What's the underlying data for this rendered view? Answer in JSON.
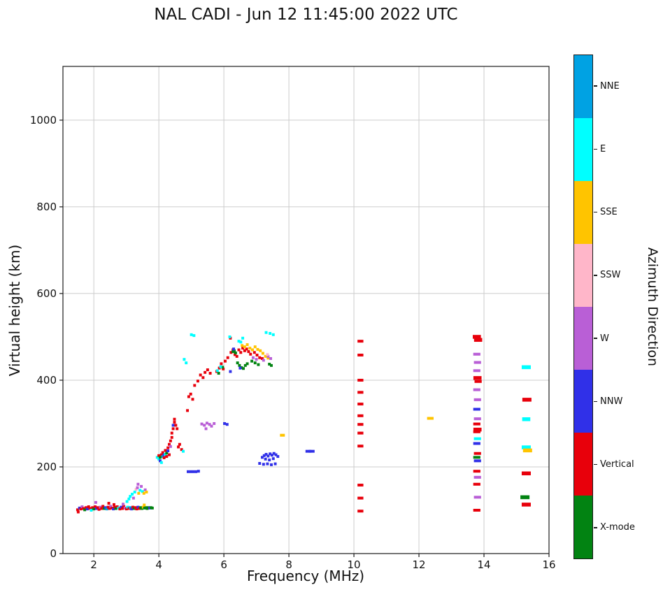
{
  "chart_data": {
    "type": "scatter",
    "title": "NAL CADI - Jun 12 11:45:00 2022 UTC",
    "xlabel": "Frequency (MHz)",
    "ylabel": "Virtual height (km)",
    "legend_title": "Azimuth Direction",
    "x_range": [
      1.05,
      16.0
    ],
    "y_range": [
      0,
      1124
    ],
    "x_ticks": [
      2,
      4,
      6,
      8,
      10,
      12,
      14,
      16
    ],
    "y_ticks": [
      0,
      200,
      400,
      600,
      800,
      1000
    ],
    "grid": true,
    "legend_position": "right-colorbar",
    "categories": [
      {
        "key": "N",
        "label": "NNE",
        "color": "#00a2e3"
      },
      {
        "key": "E",
        "label": "E",
        "color": "#00ffff"
      },
      {
        "key": "S",
        "label": "SSE",
        "color": "#ffc400"
      },
      {
        "key": "P",
        "label": "SSW",
        "color": "#ffb6c9"
      },
      {
        "key": "W",
        "label": "W",
        "color": "#b95fd6"
      },
      {
        "key": "B",
        "label": "NNW",
        "color": "#3030e8"
      },
      {
        "key": "V",
        "label": "Vertical",
        "color": "#e8000b"
      },
      {
        "key": "X",
        "label": "X-mode",
        "color": "#028312"
      }
    ],
    "point_format": [
      "frequency_mhz",
      "virtual_height_km",
      "category_key",
      "optional_dash_width_mhz"
    ],
    "points": [
      [
        1.5,
        101,
        "V"
      ],
      [
        1.52,
        96,
        "V"
      ],
      [
        1.56,
        105,
        "B"
      ],
      [
        1.6,
        103,
        "V"
      ],
      [
        1.64,
        108,
        "W"
      ],
      [
        1.68,
        104,
        "V"
      ],
      [
        1.72,
        101,
        "X"
      ],
      [
        1.76,
        106,
        "V"
      ],
      [
        1.8,
        103,
        "B"
      ],
      [
        1.84,
        108,
        "V"
      ],
      [
        1.88,
        104,
        "V"
      ],
      [
        1.92,
        100,
        "E"
      ],
      [
        1.96,
        106,
        "V"
      ],
      [
        2.0,
        103,
        "X"
      ],
      [
        2.04,
        108,
        "V"
      ],
      [
        2.08,
        104,
        "B"
      ],
      [
        2.12,
        106,
        "V"
      ],
      [
        2.16,
        102,
        "V"
      ],
      [
        2.2,
        107,
        "W"
      ],
      [
        2.24,
        104,
        "V"
      ],
      [
        2.28,
        109,
        "V"
      ],
      [
        2.32,
        104,
        "X"
      ],
      [
        2.36,
        106,
        "B"
      ],
      [
        2.4,
        103,
        "N"
      ],
      [
        2.44,
        107,
        "V"
      ],
      [
        2.48,
        104,
        "V"
      ],
      [
        2.52,
        109,
        "W"
      ],
      [
        2.56,
        105,
        "V"
      ],
      [
        2.6,
        103,
        "B"
      ],
      [
        2.64,
        107,
        "V"
      ],
      [
        2.68,
        104,
        "X"
      ],
      [
        2.72,
        108,
        "V"
      ],
      [
        2.76,
        105,
        "E"
      ],
      [
        2.8,
        103,
        "V"
      ],
      [
        2.84,
        107,
        "B"
      ],
      [
        2.88,
        104,
        "V"
      ],
      [
        2.92,
        109,
        "V"
      ],
      [
        2.96,
        105,
        "W"
      ],
      [
        3.0,
        103,
        "V"
      ],
      [
        3.04,
        107,
        "E"
      ],
      [
        3.08,
        104,
        "V"
      ],
      [
        3.12,
        106,
        "N"
      ],
      [
        3.16,
        103,
        "B"
      ],
      [
        3.2,
        107,
        "V"
      ],
      [
        3.24,
        104,
        "X"
      ],
      [
        3.28,
        106,
        "V"
      ],
      [
        3.32,
        103,
        "V"
      ],
      [
        3.36,
        107,
        "B"
      ],
      [
        3.4,
        104,
        "V"
      ],
      [
        3.44,
        106,
        "X"
      ],
      [
        3.48,
        104,
        "X"
      ],
      [
        3.52,
        107,
        "S"
      ],
      [
        3.56,
        105,
        "X"
      ],
      [
        3.6,
        106,
        "X"
      ],
      [
        3.64,
        104,
        "X"
      ],
      [
        3.68,
        106,
        "X"
      ],
      [
        3.72,
        105,
        "B"
      ],
      [
        3.76,
        106,
        "X"
      ],
      [
        3.8,
        105,
        "X"
      ],
      [
        2.06,
        118,
        "W"
      ],
      [
        2.46,
        116,
        "V"
      ],
      [
        2.62,
        113,
        "V"
      ],
      [
        2.9,
        114,
        "W"
      ],
      [
        3.02,
        120,
        "E"
      ],
      [
        3.08,
        126,
        "E"
      ],
      [
        3.12,
        132,
        "E"
      ],
      [
        3.18,
        137,
        "E"
      ],
      [
        3.22,
        128,
        "W"
      ],
      [
        3.26,
        142,
        "E"
      ],
      [
        3.3,
        148,
        "P"
      ],
      [
        3.34,
        152,
        "W"
      ],
      [
        3.38,
        139,
        "S"
      ],
      [
        3.42,
        146,
        "E"
      ],
      [
        3.46,
        155,
        "W"
      ],
      [
        3.5,
        143,
        "E"
      ],
      [
        3.54,
        139,
        "S"
      ],
      [
        3.58,
        147,
        "W"
      ],
      [
        3.36,
        160,
        "W"
      ],
      [
        3.62,
        142,
        "S"
      ],
      [
        3.55,
        112,
        "S"
      ],
      [
        3.95,
        222,
        "E"
      ],
      [
        4.0,
        218,
        "E"
      ],
      [
        4.0,
        226,
        "V"
      ],
      [
        4.04,
        222,
        "X"
      ],
      [
        4.04,
        214,
        "B"
      ],
      [
        4.08,
        228,
        "V"
      ],
      [
        4.08,
        210,
        "E"
      ],
      [
        4.12,
        224,
        "N"
      ],
      [
        4.12,
        233,
        "V"
      ],
      [
        4.16,
        221,
        "V"
      ],
      [
        4.16,
        228,
        "B"
      ],
      [
        4.2,
        238,
        "V"
      ],
      [
        4.2,
        229,
        "E"
      ],
      [
        4.24,
        224,
        "V"
      ],
      [
        4.24,
        232,
        "X"
      ],
      [
        4.28,
        244,
        "V"
      ],
      [
        4.28,
        237,
        "B"
      ],
      [
        4.32,
        252,
        "V"
      ],
      [
        4.32,
        228,
        "V"
      ],
      [
        4.36,
        260,
        "V"
      ],
      [
        4.36,
        247,
        "W"
      ],
      [
        4.4,
        268,
        "V"
      ],
      [
        4.4,
        278,
        "V"
      ],
      [
        4.44,
        288,
        "V"
      ],
      [
        4.44,
        296,
        "B"
      ],
      [
        4.48,
        303,
        "V"
      ],
      [
        4.48,
        310,
        "V"
      ],
      [
        4.52,
        296,
        "V"
      ],
      [
        4.56,
        288,
        "V"
      ],
      [
        4.6,
        246,
        "V"
      ],
      [
        4.64,
        252,
        "V"
      ],
      [
        4.7,
        240,
        "V"
      ],
      [
        4.75,
        236,
        "E"
      ],
      [
        4.78,
        448,
        "E"
      ],
      [
        4.84,
        440,
        "E"
      ],
      [
        4.88,
        330,
        "V"
      ],
      [
        4.92,
        362,
        "V"
      ],
      [
        4.98,
        368,
        "V"
      ],
      [
        5.04,
        356,
        "V"
      ],
      [
        5.1,
        388,
        "V"
      ],
      [
        5.2,
        398,
        "V"
      ],
      [
        5.28,
        412,
        "V"
      ],
      [
        5.36,
        406,
        "V"
      ],
      [
        5.42,
        418,
        "V"
      ],
      [
        5.5,
        424,
        "V"
      ],
      [
        5.58,
        416,
        "V"
      ],
      [
        4.9,
        189,
        "B"
      ],
      [
        4.98,
        189,
        "B"
      ],
      [
        5.06,
        189,
        "B"
      ],
      [
        5.14,
        189,
        "B"
      ],
      [
        5.22,
        190,
        "B"
      ],
      [
        5.32,
        299,
        "W"
      ],
      [
        5.4,
        296,
        "W"
      ],
      [
        5.48,
        301,
        "W"
      ],
      [
        5.56,
        298,
        "W"
      ],
      [
        5.62,
        294,
        "W"
      ],
      [
        5.7,
        300,
        "W"
      ],
      [
        5.45,
        288,
        "W"
      ],
      [
        6.02,
        300,
        "B"
      ],
      [
        6.1,
        298,
        "B"
      ],
      [
        5.78,
        420,
        "V"
      ],
      [
        5.86,
        428,
        "V"
      ],
      [
        5.92,
        438,
        "V"
      ],
      [
        5.98,
        426,
        "V"
      ],
      [
        6.04,
        444,
        "V"
      ],
      [
        6.12,
        452,
        "V"
      ],
      [
        6.2,
        497,
        "V"
      ],
      [
        6.22,
        464,
        "V"
      ],
      [
        6.28,
        470,
        "V"
      ],
      [
        6.34,
        459,
        "V"
      ],
      [
        6.4,
        455,
        "V"
      ],
      [
        6.46,
        470,
        "V"
      ],
      [
        6.52,
        464,
        "V"
      ],
      [
        6.58,
        474,
        "V"
      ],
      [
        6.64,
        468,
        "V"
      ],
      [
        6.7,
        472,
        "V"
      ],
      [
        6.76,
        466,
        "V"
      ],
      [
        6.82,
        460,
        "V"
      ],
      [
        6.88,
        470,
        "V"
      ],
      [
        6.94,
        464,
        "V"
      ],
      [
        7.02,
        458,
        "V"
      ],
      [
        7.1,
        452,
        "V"
      ],
      [
        7.18,
        450,
        "V"
      ],
      [
        5.84,
        416,
        "X"
      ],
      [
        5.96,
        430,
        "X"
      ],
      [
        6.28,
        466,
        "X"
      ],
      [
        6.32,
        468,
        "X"
      ],
      [
        6.36,
        463,
        "X"
      ],
      [
        6.42,
        440,
        "X"
      ],
      [
        6.48,
        434,
        "X"
      ],
      [
        6.54,
        429,
        "X"
      ],
      [
        6.6,
        427,
        "X"
      ],
      [
        6.66,
        434,
        "X"
      ],
      [
        6.72,
        438,
        "X"
      ],
      [
        6.86,
        444,
        "X"
      ],
      [
        6.96,
        440,
        "X"
      ],
      [
        7.06,
        436,
        "X"
      ],
      [
        7.4,
        437,
        "X"
      ],
      [
        7.46,
        434,
        "X"
      ],
      [
        6.56,
        480,
        "S"
      ],
      [
        6.64,
        477,
        "S"
      ],
      [
        6.72,
        482,
        "S"
      ],
      [
        6.8,
        474,
        "S"
      ],
      [
        6.88,
        470,
        "S"
      ],
      [
        6.96,
        477,
        "S"
      ],
      [
        7.04,
        471,
        "S"
      ],
      [
        7.12,
        468,
        "S"
      ],
      [
        7.2,
        462,
        "S"
      ],
      [
        7.28,
        455,
        "S"
      ],
      [
        7.36,
        451,
        "S"
      ],
      [
        5.8,
        422,
        "E"
      ],
      [
        5.9,
        431,
        "E"
      ],
      [
        6.18,
        500,
        "E"
      ],
      [
        6.46,
        490,
        "E"
      ],
      [
        6.52,
        488,
        "E"
      ],
      [
        6.58,
        497,
        "E"
      ],
      [
        7.3,
        510,
        "E"
      ],
      [
        7.42,
        508,
        "E"
      ],
      [
        7.52,
        505,
        "E"
      ],
      [
        5.0,
        505,
        "E"
      ],
      [
        5.08,
        503,
        "E"
      ],
      [
        6.9,
        452,
        "W"
      ],
      [
        7.0,
        448,
        "W"
      ],
      [
        7.22,
        446,
        "W"
      ],
      [
        7.36,
        455,
        "W"
      ],
      [
        7.44,
        450,
        "W"
      ],
      [
        7.34,
        459,
        "P"
      ],
      [
        6.3,
        472,
        "B"
      ],
      [
        6.5,
        428,
        "B"
      ],
      [
        6.2,
        420,
        "B"
      ],
      [
        7.18,
        222,
        "B"
      ],
      [
        7.24,
        226,
        "B"
      ],
      [
        7.3,
        229,
        "B"
      ],
      [
        7.36,
        225,
        "B"
      ],
      [
        7.42,
        230,
        "B"
      ],
      [
        7.48,
        227,
        "B"
      ],
      [
        7.54,
        231,
        "B"
      ],
      [
        7.6,
        228,
        "B"
      ],
      [
        7.66,
        224,
        "B"
      ],
      [
        7.28,
        218,
        "B"
      ],
      [
        7.4,
        216,
        "B"
      ],
      [
        7.52,
        219,
        "B"
      ],
      [
        7.1,
        208,
        "B"
      ],
      [
        7.22,
        206,
        "B"
      ],
      [
        7.34,
        207,
        "B"
      ],
      [
        7.46,
        205,
        "B"
      ],
      [
        7.58,
        207,
        "B"
      ],
      [
        8.6,
        236,
        "B",
        0.18
      ],
      [
        8.7,
        236,
        "B",
        0.18
      ],
      [
        7.8,
        273,
        "S",
        0.15
      ],
      [
        10.2,
        490,
        "V",
        0.18
      ],
      [
        10.2,
        458,
        "V",
        0.18
      ],
      [
        10.2,
        400,
        "V",
        0.18
      ],
      [
        10.2,
        372,
        "V",
        0.18
      ],
      [
        10.2,
        345,
        "V",
        0.18
      ],
      [
        10.2,
        318,
        "V",
        0.18
      ],
      [
        10.2,
        298,
        "V",
        0.18
      ],
      [
        10.2,
        278,
        "V",
        0.18
      ],
      [
        10.2,
        248,
        "V",
        0.18
      ],
      [
        10.2,
        158,
        "V",
        0.18
      ],
      [
        10.2,
        128,
        "V",
        0.18
      ],
      [
        10.2,
        98,
        "V",
        0.18
      ],
      [
        12.35,
        312,
        "S",
        0.2
      ],
      [
        13.78,
        500,
        "V",
        0.25
      ],
      [
        13.82,
        493,
        "V",
        0.25
      ],
      [
        13.78,
        460,
        "W",
        0.22
      ],
      [
        13.8,
        441,
        "W",
        0.22
      ],
      [
        13.78,
        422,
        "W",
        0.22
      ],
      [
        13.8,
        405,
        "V",
        0.25
      ],
      [
        13.82,
        397,
        "V",
        0.22
      ],
      [
        13.78,
        378,
        "W",
        0.22
      ],
      [
        13.8,
        355,
        "W",
        0.22
      ],
      [
        13.78,
        333,
        "B",
        0.22
      ],
      [
        13.8,
        311,
        "W",
        0.22
      ],
      [
        13.78,
        299,
        "V",
        0.22
      ],
      [
        13.8,
        286,
        "V",
        0.25
      ],
      [
        13.78,
        281,
        "V",
        0.22
      ],
      [
        13.8,
        265,
        "E",
        0.22
      ],
      [
        13.78,
        254,
        "B",
        0.22
      ],
      [
        13.8,
        231,
        "V",
        0.22
      ],
      [
        13.78,
        222,
        "X",
        0.22
      ],
      [
        13.8,
        214,
        "B",
        0.22
      ],
      [
        13.78,
        190,
        "V",
        0.22
      ],
      [
        13.8,
        176,
        "W",
        0.22
      ],
      [
        13.78,
        160,
        "V",
        0.22
      ],
      [
        13.8,
        130,
        "W",
        0.22
      ],
      [
        13.78,
        100,
        "V",
        0.22
      ],
      [
        15.3,
        430,
        "E",
        0.28
      ],
      [
        15.32,
        355,
        "V",
        0.28
      ],
      [
        15.3,
        310,
        "E",
        0.25
      ],
      [
        15.3,
        245,
        "E",
        0.28
      ],
      [
        15.34,
        238,
        "S",
        0.28
      ],
      [
        15.3,
        185,
        "V",
        0.28
      ],
      [
        15.26,
        130,
        "X",
        0.28
      ],
      [
        15.3,
        113,
        "V",
        0.28
      ]
    ]
  }
}
